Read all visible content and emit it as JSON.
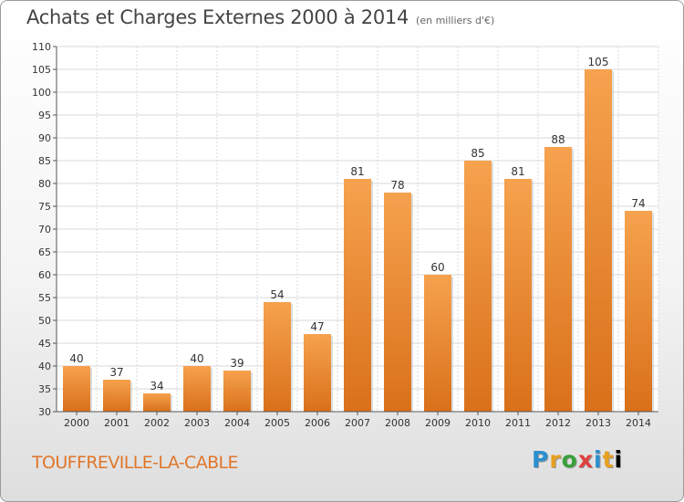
{
  "chart_data": {
    "type": "bar",
    "title": "Achats et Charges Externes 2000 à 2014",
    "subtitle": "(en milliers d'€)",
    "categories": [
      "2000",
      "2001",
      "2002",
      "2003",
      "2004",
      "2005",
      "2006",
      "2007",
      "2008",
      "2009",
      "2010",
      "2011",
      "2012",
      "2013",
      "2014"
    ],
    "values": [
      40,
      37,
      34,
      40,
      39,
      54,
      47,
      81,
      78,
      60,
      85,
      81,
      88,
      105,
      74
    ],
    "ylim": [
      30,
      110
    ],
    "yticks": [
      30,
      35,
      40,
      45,
      50,
      55,
      60,
      65,
      70,
      75,
      80,
      85,
      90,
      95,
      100,
      105,
      110
    ],
    "grid": true,
    "bar_color": "#f0913a",
    "grid_color": "#d9d9d9"
  },
  "footer": {
    "location": "TOUFFREVILLE-LA-CABLE",
    "logo_letters": [
      "P",
      "r",
      "o",
      "x",
      "i",
      "t",
      "i"
    ]
  }
}
